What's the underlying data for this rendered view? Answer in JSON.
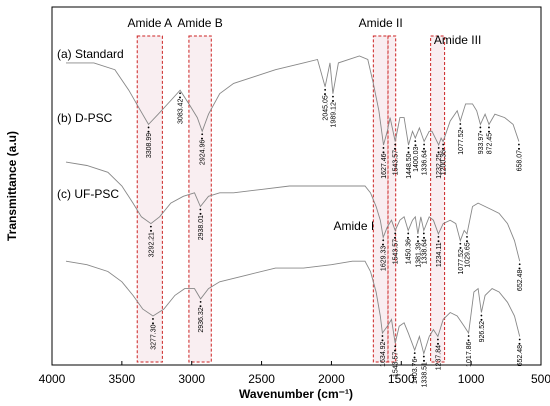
{
  "chart_data": {
    "type": "line",
    "xlabel": "Wavenumber (cm⁻¹)",
    "ylabel": "Transmittance (a.u)",
    "xlim": [
      4000,
      500
    ],
    "x_ticks": [
      4000,
      3500,
      3000,
      2500,
      2000,
      1500,
      1000,
      500
    ],
    "grid": false,
    "series": [
      {
        "name": "(a) Standard",
        "color": "#888888",
        "points": [
          [
            3900,
            0.86
          ],
          [
            3700,
            0.86
          ],
          [
            3550,
            0.84
          ],
          [
            3450,
            0.78
          ],
          [
            3380,
            0.73
          ],
          [
            3308.99,
            0.68
          ],
          [
            3240,
            0.71
          ],
          [
            3150,
            0.75
          ],
          [
            3083.42,
            0.78
          ],
          [
            3020,
            0.74
          ],
          [
            2960,
            0.7
          ],
          [
            2924.96,
            0.66
          ],
          [
            2880,
            0.71
          ],
          [
            2800,
            0.77
          ],
          [
            2700,
            0.8
          ],
          [
            2550,
            0.82
          ],
          [
            2400,
            0.84
          ],
          [
            2200,
            0.86
          ],
          [
            2100,
            0.87
          ],
          [
            2045.05,
            0.79
          ],
          [
            2010,
            0.86
          ],
          [
            1989.12,
            0.77
          ],
          [
            1950,
            0.86
          ],
          [
            1800,
            0.88
          ],
          [
            1740,
            0.87
          ],
          [
            1700,
            0.8
          ],
          [
            1660,
            0.72
          ],
          [
            1627.46,
            0.62
          ],
          [
            1600,
            0.66
          ],
          [
            1580,
            0.7
          ],
          [
            1543.57,
            0.63
          ],
          [
            1510,
            0.7
          ],
          [
            1480,
            0.7
          ],
          [
            1448.5,
            0.62
          ],
          [
            1420,
            0.66
          ],
          [
            1400.03,
            0.64
          ],
          [
            1370,
            0.67
          ],
          [
            1336.64,
            0.63
          ],
          [
            1300,
            0.66
          ],
          [
            1280,
            0.66
          ],
          [
            1232.25,
            0.62
          ],
          [
            1215,
            0.64
          ],
          [
            1200.36,
            0.63
          ],
          [
            1150,
            0.69
          ],
          [
            1100,
            0.72
          ],
          [
            1077.52,
            0.69
          ],
          [
            1040,
            0.74
          ],
          [
            990,
            0.74
          ],
          [
            960,
            0.72
          ],
          [
            933.97,
            0.68
          ],
          [
            900,
            0.71
          ],
          [
            872.45,
            0.68
          ],
          [
            830,
            0.71
          ],
          [
            760,
            0.7
          ],
          [
            700,
            0.68
          ],
          [
            658.07,
            0.63
          ]
        ]
      },
      {
        "name": "(b) D-PSC",
        "color": "#888888",
        "points": [
          [
            3900,
            0.57
          ],
          [
            3750,
            0.56
          ],
          [
            3600,
            0.54
          ],
          [
            3500,
            0.5
          ],
          [
            3420,
            0.45
          ],
          [
            3360,
            0.41
          ],
          [
            3292.21,
            0.39
          ],
          [
            3230,
            0.41
          ],
          [
            3150,
            0.45
          ],
          [
            3060,
            0.47
          ],
          [
            2980,
            0.48
          ],
          [
            2938.01,
            0.44
          ],
          [
            2880,
            0.47
          ],
          [
            2800,
            0.48
          ],
          [
            2700,
            0.48
          ],
          [
            2500,
            0.49
          ],
          [
            2300,
            0.5
          ],
          [
            2100,
            0.5
          ],
          [
            1900,
            0.5
          ],
          [
            1760,
            0.5
          ],
          [
            1720,
            0.48
          ],
          [
            1680,
            0.44
          ],
          [
            1650,
            0.4
          ],
          [
            1629.33,
            0.35
          ],
          [
            1600,
            0.38
          ],
          [
            1570,
            0.4
          ],
          [
            1543.57,
            0.37
          ],
          [
            1510,
            0.4
          ],
          [
            1480,
            0.41
          ],
          [
            1450.36,
            0.37
          ],
          [
            1420,
            0.4
          ],
          [
            1400,
            0.41
          ],
          [
            1381.39,
            0.36
          ],
          [
            1360,
            0.41
          ],
          [
            1338.64,
            0.37
          ],
          [
            1300,
            0.41
          ],
          [
            1270,
            0.4
          ],
          [
            1234.11,
            0.36
          ],
          [
            1200,
            0.39
          ],
          [
            1150,
            0.4
          ],
          [
            1110,
            0.39
          ],
          [
            1077.52,
            0.34
          ],
          [
            1050,
            0.37
          ],
          [
            1029.65,
            0.36
          ],
          [
            990,
            0.44
          ],
          [
            950,
            0.45
          ],
          [
            900,
            0.44
          ],
          [
            850,
            0.43
          ],
          [
            800,
            0.42
          ],
          [
            740,
            0.39
          ],
          [
            690,
            0.34
          ],
          [
            652.48,
            0.28
          ]
        ]
      },
      {
        "name": "(c) UF-PSC",
        "color": "#888888",
        "points": [
          [
            3900,
            0.28
          ],
          [
            3750,
            0.27
          ],
          [
            3600,
            0.25
          ],
          [
            3500,
            0.22
          ],
          [
            3420,
            0.18
          ],
          [
            3350,
            0.14
          ],
          [
            3277.3,
            0.12
          ],
          [
            3200,
            0.14
          ],
          [
            3120,
            0.18
          ],
          [
            3050,
            0.2
          ],
          [
            2980,
            0.2
          ],
          [
            2936.32,
            0.17
          ],
          [
            2880,
            0.2
          ],
          [
            2800,
            0.22
          ],
          [
            2600,
            0.24
          ],
          [
            2400,
            0.26
          ],
          [
            2200,
            0.26
          ],
          [
            2000,
            0.27
          ],
          [
            1850,
            0.28
          ],
          [
            1760,
            0.28
          ],
          [
            1720,
            0.25
          ],
          [
            1680,
            0.19
          ],
          [
            1650,
            0.12
          ],
          [
            1634.92,
            0.07
          ],
          [
            1600,
            0.09
          ],
          [
            1570,
            0.11
          ],
          [
            1543.57,
            0.04
          ],
          [
            1515,
            0.09
          ],
          [
            1480,
            0.1
          ],
          [
            1450,
            0.07
          ],
          [
            1403.76,
            0.02
          ],
          [
            1370,
            0.06
          ],
          [
            1338.51,
            0.01
          ],
          [
            1300,
            0.06
          ],
          [
            1270,
            0.08
          ],
          [
            1237.84,
            0.06
          ],
          [
            1200,
            0.11
          ],
          [
            1150,
            0.13
          ],
          [
            1100,
            0.12
          ],
          [
            1050,
            0.09
          ],
          [
            1017.86,
            0.07
          ],
          [
            980,
            0.19
          ],
          [
            950,
            0.2
          ],
          [
            926.52,
            0.13
          ],
          [
            900,
            0.18
          ],
          [
            850,
            0.2
          ],
          [
            800,
            0.19
          ],
          [
            740,
            0.16
          ],
          [
            690,
            0.12
          ],
          [
            652.48,
            0.06
          ]
        ]
      }
    ],
    "peak_labels": [
      {
        "text": "3308.99",
        "x": 3308.99,
        "y": 0.68
      },
      {
        "text": "3083.42",
        "x": 3083.42,
        "y": 0.78
      },
      {
        "text": "2924.96",
        "x": 2924.96,
        "y": 0.66
      },
      {
        "text": "2045.05",
        "x": 2045.05,
        "y": 0.79
      },
      {
        "text": "1989.12",
        "x": 1989.12,
        "y": 0.77
      },
      {
        "text": "1627.46",
        "x": 1627.46,
        "y": 0.62
      },
      {
        "text": "1543.57",
        "x": 1543.57,
        "y": 0.63
      },
      {
        "text": "1448.50",
        "x": 1448.5,
        "y": 0.62
      },
      {
        "text": "1400.03",
        "x": 1400.03,
        "y": 0.64
      },
      {
        "text": "1336.64",
        "x": 1336.64,
        "y": 0.63
      },
      {
        "text": "1232.25",
        "x": 1232.25,
        "y": 0.62
      },
      {
        "text": "1200.36",
        "x": 1200.36,
        "y": 0.63
      },
      {
        "text": "1077.52",
        "x": 1077.52,
        "y": 0.69
      },
      {
        "text": "933.97",
        "x": 933.97,
        "y": 0.68
      },
      {
        "text": "872.45",
        "x": 872.45,
        "y": 0.68
      },
      {
        "text": "658.07",
        "x": 658.07,
        "y": 0.63
      },
      {
        "text": "3292.21",
        "x": 3292.21,
        "y": 0.39
      },
      {
        "text": "2938.01",
        "x": 2938.01,
        "y": 0.44
      },
      {
        "text": "1629.33",
        "x": 1629.33,
        "y": 0.35
      },
      {
        "text": "1543.57",
        "x": 1543.57,
        "y": 0.37
      },
      {
        "text": "1450.36",
        "x": 1450.36,
        "y": 0.37
      },
      {
        "text": "1381.39",
        "x": 1381.39,
        "y": 0.36
      },
      {
        "text": "1338.64",
        "x": 1338.64,
        "y": 0.37
      },
      {
        "text": "1234.11",
        "x": 1234.11,
        "y": 0.36
      },
      {
        "text": "1077.52",
        "x": 1077.52,
        "y": 0.34
      },
      {
        "text": "1029.65",
        "x": 1029.65,
        "y": 0.36
      },
      {
        "text": "652.48",
        "x": 652.48,
        "y": 0.28
      },
      {
        "text": "3277.30",
        "x": 3277.3,
        "y": 0.12
      },
      {
        "text": "2936.32",
        "x": 2936.32,
        "y": 0.17
      },
      {
        "text": "1634.92",
        "x": 1634.92,
        "y": 0.07
      },
      {
        "text": "1543.57",
        "x": 1543.57,
        "y": 0.04
      },
      {
        "text": "1403.76",
        "x": 1403.76,
        "y": 0.02
      },
      {
        "text": "1338.51",
        "x": 1338.51,
        "y": 0.01
      },
      {
        "text": "1237.84",
        "x": 1237.84,
        "y": 0.06
      },
      {
        "text": "1017.86",
        "x": 1017.86,
        "y": 0.07
      },
      {
        "text": "926.52",
        "x": 926.52,
        "y": 0.13
      },
      {
        "text": "652.48",
        "x": 652.48,
        "y": 0.06
      }
    ],
    "regions": [
      {
        "label": "Amide A",
        "x_range": [
          3390,
          3210
        ]
      },
      {
        "label": "Amide B",
        "x_range": [
          3020,
          2860
        ]
      },
      {
        "label": "Amide II",
        "x_range": [
          1700,
          1595
        ]
      },
      {
        "label": "Amide I",
        "x_range": [
          1595,
          1540
        ]
      },
      {
        "label": "Amide III",
        "x_range": [
          1290,
          1190
        ]
      }
    ],
    "region_style": {
      "border": "#cc2222",
      "fill": "#f4dde4"
    }
  }
}
